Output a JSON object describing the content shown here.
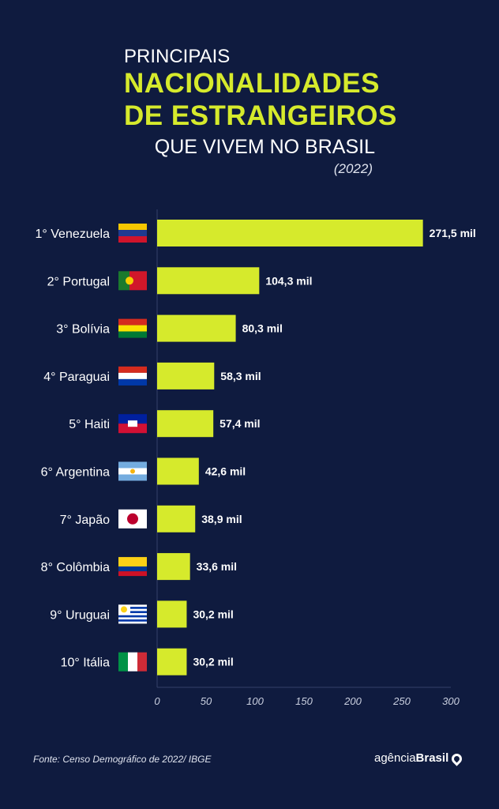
{
  "header": {
    "line1": "PRINCIPAIS",
    "line2": "NACIONALIDADES",
    "line3": "DE ESTRANGEIROS",
    "line4": "QUE VIVEM NO BRASIL",
    "year": "(2022)"
  },
  "chart_data": {
    "type": "bar",
    "orientation": "horizontal",
    "title": "Principais nacionalidades de estrangeiros que vivem no Brasil (2022)",
    "categories": [
      "1° Venezuela",
      "2° Portugal",
      "3° Bolívia",
      "4° Paraguai",
      "5° Haiti",
      "6° Argentina",
      "7° Japão",
      "8° Colômbia",
      "9° Uruguai",
      "10° Itália"
    ],
    "values": [
      271.5,
      104.3,
      80.3,
      58.3,
      57.4,
      42.6,
      38.9,
      33.6,
      30.2,
      30.2
    ],
    "value_labels": [
      "271,5 mil",
      "104,3 mil",
      "80,3 mil",
      "58,3 mil",
      "57,4 mil",
      "42,6 mil",
      "38,9 mil",
      "33,6 mil",
      "30,2 mil",
      "30,2 mil"
    ],
    "flags": [
      "venezuela",
      "portugal",
      "bolivia",
      "paraguay",
      "haiti",
      "argentina",
      "japan",
      "colombia",
      "uruguay",
      "italy"
    ],
    "xticks": [
      "0",
      "50",
      "100",
      "150",
      "200",
      "250",
      "300"
    ],
    "xlim": [
      0,
      300
    ],
    "bar_color": "#d6ea2c",
    "grid": false
  },
  "footer": {
    "source": "Fonte:  Censo Demográfico de 2022/ IBGE",
    "logo_light": "agência",
    "logo_bold": "Brasil"
  }
}
